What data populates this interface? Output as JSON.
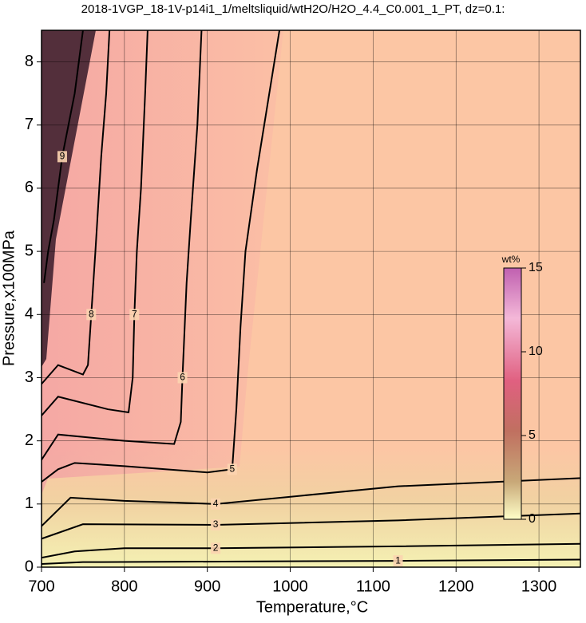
{
  "chart_data": {
    "type": "contour",
    "title": "2018-1VGP_18-1V-p14i1_1/meltsliquid/wtH2O/H2O_4.4_C0.001_1_PT, dz=0.1:",
    "x_label": "Temperature,°C",
    "y_label": "Pressure,x100MPa",
    "xlim": [
      700,
      1350
    ],
    "ylim": [
      0,
      8.5
    ],
    "xticks": [
      700,
      800,
      900,
      1000,
      1100,
      1200,
      1300
    ],
    "yticks": [
      0,
      1,
      2,
      3,
      4,
      5,
      6,
      7,
      8
    ],
    "grid": true,
    "colorbar": {
      "label": "wt%",
      "lim": [
        0,
        15
      ],
      "ticks": [
        0,
        5,
        10,
        15
      ]
    },
    "contours": [
      {
        "level": 1,
        "x": [
          700,
          750,
          1130,
          1350
        ],
        "y": [
          0.05,
          0.08,
          0.1,
          0.12
        ]
      },
      {
        "level": 2,
        "x": [
          700,
          740,
          800,
          910,
          1130,
          1350
        ],
        "y": [
          0.15,
          0.25,
          0.3,
          0.3,
          0.33,
          0.37
        ]
      },
      {
        "level": 3,
        "x": [
          700,
          750,
          910,
          1130,
          1350
        ],
        "y": [
          0.45,
          0.68,
          0.67,
          0.74,
          0.85
        ]
      },
      {
        "level": 4,
        "x": [
          700,
          735,
          800,
          910,
          1130,
          1350
        ],
        "y": [
          0.65,
          1.1,
          1.05,
          1.0,
          1.28,
          1.41
        ]
      },
      {
        "level": 5,
        "x": [
          700,
          720,
          740,
          800,
          900,
          930,
          935,
          940,
          946,
          960,
          987
        ],
        "y": [
          1.35,
          1.55,
          1.65,
          1.6,
          1.5,
          1.55,
          2.5,
          3.8,
          5,
          6.3,
          8.5
        ]
      },
      {
        "level": 6,
        "x": [
          700,
          720,
          800,
          860,
          868,
          870,
          875,
          880,
          888,
          893
        ],
        "y": [
          1.7,
          2.1,
          2.0,
          1.95,
          2.3,
          3,
          4.5,
          5.5,
          7,
          8.5
        ]
      },
      {
        "level": 7,
        "x": [
          700,
          720,
          780,
          805,
          810,
          812,
          815,
          820,
          825,
          828
        ],
        "y": [
          2.4,
          2.7,
          2.5,
          2.45,
          3,
          4,
          5,
          6,
          7.5,
          8.5
        ]
      },
      {
        "level": 8,
        "x": [
          700,
          720,
          750,
          756,
          760,
          765,
          772,
          778,
          782
        ],
        "y": [
          2.9,
          3.2,
          3.05,
          3.2,
          4,
          5,
          6.5,
          7.5,
          8.5
        ]
      },
      {
        "level": 9,
        "x": [
          703,
          708,
          715,
          725,
          740,
          750
        ],
        "y": [
          4.5,
          5,
          5.5,
          6.5,
          7.5,
          8.5
        ]
      }
    ]
  }
}
